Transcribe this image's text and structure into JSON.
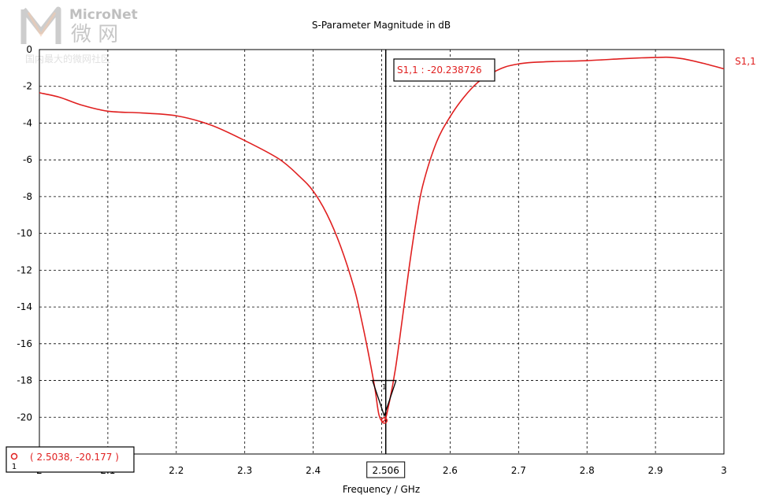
{
  "watermark": {
    "brand": "MicroNet",
    "cn": "微 网",
    "tagline": "国内最大的微网社区"
  },
  "chart_data": {
    "type": "line",
    "title": "S-Parameter Magnitude in dB",
    "xlabel": "Frequency / GHz",
    "ylabel": "",
    "xlim": [
      2.0,
      3.0
    ],
    "ylim": [
      -22,
      0
    ],
    "x_ticks": [
      "2",
      "2.1",
      "2.2",
      "2.3",
      "2.4",
      "2.506",
      "2.6",
      "2.7",
      "2.8",
      "2.9",
      "3"
    ],
    "y_ticks": [
      "0",
      "-2",
      "-4",
      "-6",
      "-8",
      "-10",
      "-12",
      "-14",
      "-16",
      "-18",
      "-20"
    ],
    "grid": true,
    "series": [
      {
        "name": "S1,1",
        "color": "#e02020",
        "x": [
          2.0,
          2.03,
          2.06,
          2.1,
          2.15,
          2.2,
          2.25,
          2.3,
          2.35,
          2.38,
          2.4,
          2.42,
          2.44,
          2.46,
          2.47,
          2.48,
          2.49,
          2.4963,
          2.5038,
          2.51,
          2.52,
          2.53,
          2.54,
          2.55,
          2.56,
          2.58,
          2.6,
          2.62,
          2.64,
          2.66,
          2.68,
          2.7,
          2.72,
          2.75,
          2.8,
          2.85,
          2.88,
          2.9,
          2.92,
          2.94,
          2.97,
          3.0
        ],
        "y": [
          -2.35,
          -2.6,
          -3.0,
          -3.35,
          -3.45,
          -3.6,
          -4.1,
          -4.95,
          -5.95,
          -6.9,
          -7.7,
          -8.95,
          -10.7,
          -13.0,
          -14.6,
          -16.4,
          -18.4,
          -19.9,
          -20.2,
          -19.4,
          -17.4,
          -14.7,
          -11.9,
          -9.4,
          -7.4,
          -5.05,
          -3.65,
          -2.6,
          -1.8,
          -1.3,
          -0.95,
          -0.78,
          -0.7,
          -0.65,
          -0.6,
          -0.5,
          -0.45,
          -0.43,
          -0.42,
          -0.5,
          -0.75,
          -1.05
        ]
      }
    ],
    "marker": {
      "label": "S1,1 : -20.238726",
      "x": 2.506,
      "y": -20.238726,
      "x_label": "2.506"
    },
    "cursor": {
      "id": "1",
      "readout": "( 2.5038, -20.177 )",
      "x": 2.5038,
      "y": -20.177
    }
  }
}
